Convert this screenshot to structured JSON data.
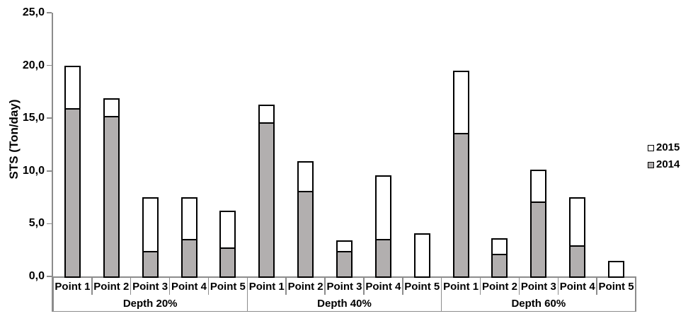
{
  "chart_data": {
    "type": "bar",
    "variant": "stacked-column",
    "title": "",
    "xlabel": "",
    "ylabel": "STS (Ton/day)",
    "ylim": [
      0,
      25
    ],
    "ytick_interval": 5,
    "ytick_labels": [
      "0,0",
      "5,0",
      "10,0",
      "15,0",
      "20,0",
      "25,0"
    ],
    "decimal_separator": ",",
    "grid": false,
    "legend_position": "right",
    "groups": [
      {
        "label": "Depth 20%",
        "categories": [
          "Point 1",
          "Point 2",
          "Point 3",
          "Point 4",
          "Point 5"
        ]
      },
      {
        "label": "Depth 40%",
        "categories": [
          "Point 1",
          "Point 2",
          "Point 3",
          "Point 4",
          "Point 5"
        ]
      },
      {
        "label": "Depth 60%",
        "categories": [
          "Point 1",
          "Point 2",
          "Point 3",
          "Point 4",
          "Point 5"
        ]
      }
    ],
    "series": [
      {
        "name": "2014",
        "fill": "#b2afaf",
        "border": "#000000",
        "stack_position": "bottom",
        "values": [
          [
            15.8,
            15.1,
            2.3,
            3.4,
            2.6
          ],
          [
            14.5,
            8.0,
            2.3,
            3.4,
            0.0
          ],
          [
            13.5,
            2.0,
            7.0,
            2.8,
            0.0
          ]
        ]
      },
      {
        "name": "2015",
        "fill": "#ffffff",
        "border": "#000000",
        "stack_position": "top",
        "values": [
          [
            4.2,
            1.8,
            5.2,
            4.1,
            3.6
          ],
          [
            1.8,
            2.9,
            1.1,
            6.2,
            4.1
          ],
          [
            6.0,
            1.6,
            3.1,
            4.7,
            1.5
          ]
        ]
      }
    ],
    "stacked_totals": [
      [
        20.0,
        16.9,
        7.5,
        7.5,
        6.2
      ],
      [
        16.3,
        10.9,
        3.4,
        9.6,
        4.1
      ],
      [
        19.5,
        3.6,
        10.1,
        7.5,
        1.5
      ]
    ],
    "legend_entries": [
      {
        "label": "2015",
        "fill": "#ffffff"
      },
      {
        "label": "2014",
        "fill": "#b2afaf"
      }
    ],
    "colors": {
      "axis_line": "#8c8c8c",
      "bar_border": "#000000",
      "series_2014": "#b2afaf",
      "series_2015": "#ffffff",
      "text": "#000000",
      "background": "#ffffff"
    }
  }
}
